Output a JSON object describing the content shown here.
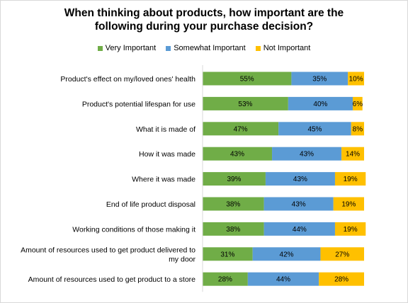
{
  "chart_data": {
    "type": "bar",
    "orientation": "horizontal",
    "stacked": true,
    "title": "When thinking about products, how important are the following during your purchase decision?",
    "title_lines": [
      "When thinking about products, how important are the",
      "following during your purchase decision?"
    ],
    "legend_position": "top",
    "grid": false,
    "categories": [
      "Product's effect on my/loved ones' health",
      "Product's potential lifespan for use",
      "What it is made of",
      "How it was made",
      "Where it was made",
      "End of life product disposal",
      "Working conditions of those making it",
      "Amount of resources used to get product delivered to my door",
      "Amount of resources used to get product to a store"
    ],
    "category_lines": [
      [
        "Product's effect on my/loved ones' health"
      ],
      [
        "Product's potential lifespan for use"
      ],
      [
        "What it is made of"
      ],
      [
        "How it was made"
      ],
      [
        "Where it was made"
      ],
      [
        "End of life product disposal"
      ],
      [
        "Working conditions of those making it"
      ],
      [
        "Amount of resources used to get product delivered to",
        "my door"
      ],
      [
        "Amount of resources used to get product to a store"
      ]
    ],
    "series": [
      {
        "name": "Very Important",
        "color": "#70ad47",
        "values": [
          55,
          53,
          47,
          43,
          39,
          38,
          38,
          31,
          28
        ]
      },
      {
        "name": "Somewhat Important",
        "color": "#5b9bd5",
        "values": [
          35,
          40,
          45,
          43,
          43,
          43,
          44,
          42,
          44
        ]
      },
      {
        "name": "Not Important",
        "color": "#ffc000",
        "values": [
          10,
          6,
          8,
          14,
          19,
          19,
          19,
          27,
          28
        ]
      }
    ],
    "value_suffix": "%",
    "xlim": [
      0,
      100
    ]
  }
}
